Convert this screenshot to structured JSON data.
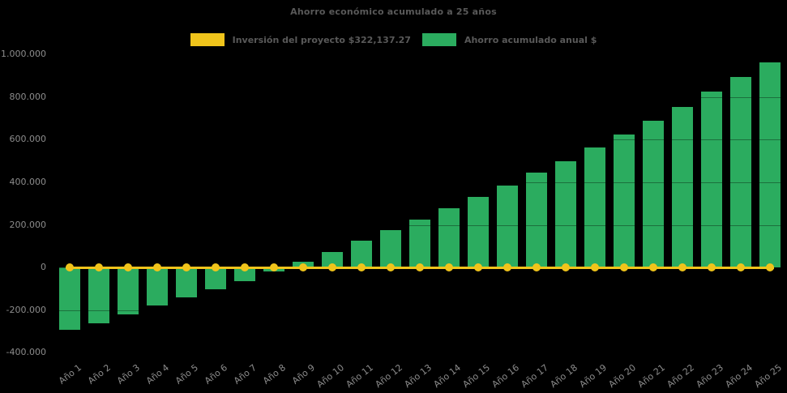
{
  "title": "Ahorro económico acumulado a 25 años",
  "legend": {
    "items": [
      {
        "label": "Inversión del proyecto $322,137.27",
        "color": "#F0C41B",
        "series_type": "line"
      },
      {
        "label": "Ahorro acumulado anual $",
        "color": "#2BAC5F",
        "series_type": "bar"
      }
    ]
  },
  "colors": {
    "background": "#000000",
    "bar_green": "#2BAC5F",
    "line_yellow": "#F0C41B",
    "title_text": "#595959",
    "axis_text": "#8C8C8C",
    "gridline": "rgba(0,0,0,0.35)"
  },
  "chart_data": {
    "type": "bar",
    "title": "Ahorro económico acumulado a 25 años",
    "categories": [
      "Año 1",
      "Año 2",
      "Año 3",
      "Año 4",
      "Año 5",
      "Año 6",
      "Año 7",
      "Año 8",
      "Año 9",
      "Año 10",
      "Año 11",
      "Año 12",
      "Año 13",
      "Año 14",
      "Año 15",
      "Año 16",
      "Año 17",
      "Año 18",
      "Año 19",
      "Año 20",
      "Año 21",
      "Año 22",
      "Año 23",
      "Año 24",
      "Año 25"
    ],
    "series": [
      {
        "name": "Ahorro acumulado anual $",
        "type": "bar",
        "color": "#2BAC5F",
        "values": [
          -292000,
          -262000,
          -220000,
          -178000,
          -140000,
          -102000,
          -64000,
          -18000,
          28000,
          72000,
          126000,
          174000,
          224000,
          278000,
          332000,
          384000,
          444000,
          500000,
          562000,
          624000,
          690000,
          754000,
          824000,
          894000,
          962000
        ]
      },
      {
        "name": "Inversión del proyecto $322,137.27",
        "type": "line",
        "color": "#F0C41B",
        "marker": "circle",
        "values": [
          0,
          0,
          0,
          0,
          0,
          0,
          0,
          0,
          0,
          0,
          0,
          0,
          0,
          0,
          0,
          0,
          0,
          0,
          0,
          0,
          0,
          0,
          0,
          0,
          0
        ]
      }
    ],
    "xlabel": "",
    "ylabel": "",
    "ylim": [
      -400000,
      1000000
    ],
    "y_axis": {
      "ticks": [
        {
          "value": 1000000,
          "label": "1.000.000"
        },
        {
          "value": 800000,
          "label": "800.000"
        },
        {
          "value": 600000,
          "label": "600.000"
        },
        {
          "value": 400000,
          "label": "400.000"
        },
        {
          "value": 200000,
          "label": "200.000"
        },
        {
          "value": 0,
          "label": "0"
        },
        {
          "value": -200000,
          "label": "-200.000"
        },
        {
          "value": -400000,
          "label": "-400.000"
        }
      ]
    },
    "legend_position": "top",
    "grid": "subtle horizontal lines drawn over bars"
  }
}
